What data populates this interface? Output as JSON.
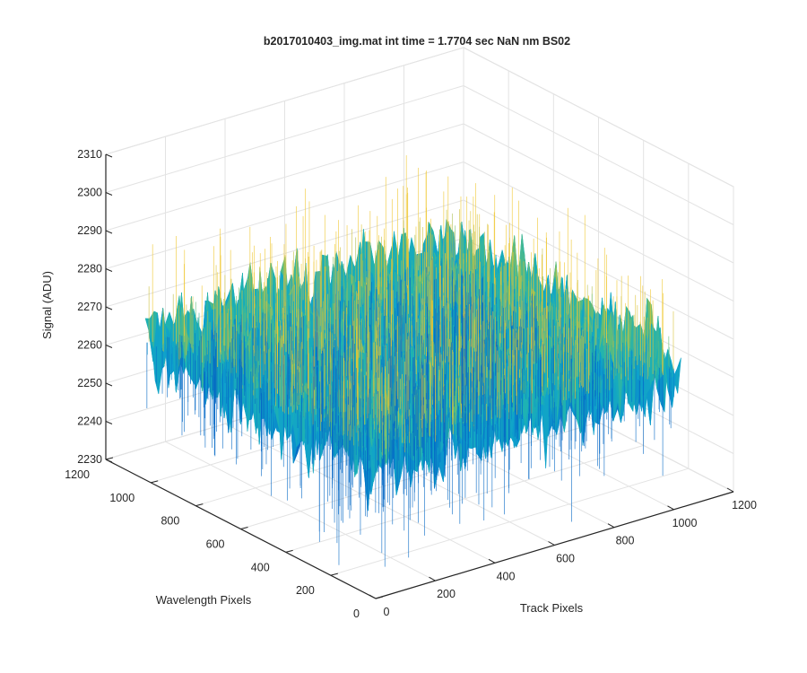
{
  "chart_data": {
    "type": "surface",
    "title": "b2017010403_img.mat int time = 1.7704 sec  NaN nm BS02",
    "xlabel": "Track Pixels",
    "ylabel": "Wavelength Pixels",
    "zlabel": "Signal (ADU)",
    "xlim": [
      0,
      1200
    ],
    "ylim": [
      0,
      1200
    ],
    "zlim": [
      2230,
      2310
    ],
    "xticks": [
      "0",
      "200",
      "400",
      "600",
      "800",
      "1000",
      "1200"
    ],
    "yticks": [
      "0",
      "200",
      "400",
      "600",
      "800",
      "1000",
      "1200"
    ],
    "zticks": [
      "2230",
      "2240",
      "2250",
      "2260",
      "2270",
      "2280",
      "2290",
      "2300",
      "2310"
    ],
    "grid": true,
    "colormap": "parula",
    "surface_extent": {
      "x": [
        0,
        1024
      ],
      "y": [
        0,
        1024
      ]
    },
    "signal_mean_approx": 2266,
    "signal_noise_range_approx": [
      2235,
      2300
    ]
  }
}
